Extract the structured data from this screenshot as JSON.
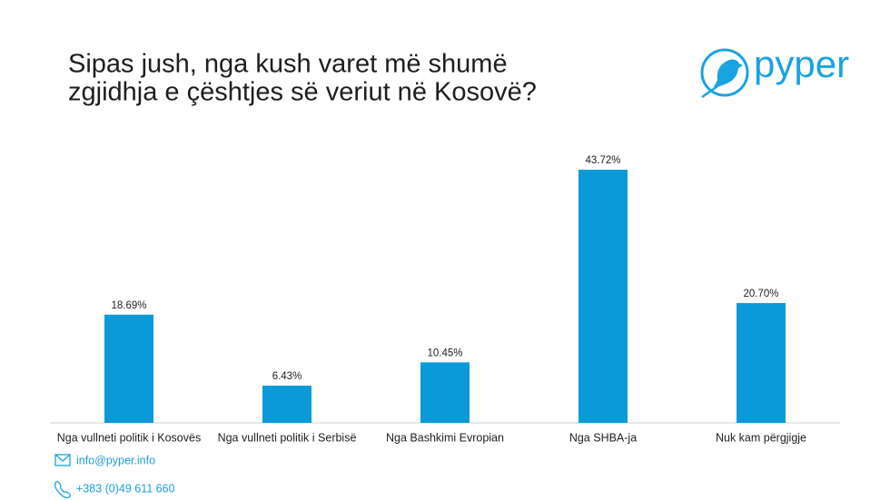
{
  "chart_data": {
    "type": "bar",
    "title": [
      "Sipas jush, nga kush varet më shumë",
      "zgjidhja e çështjes së veriut në Kosovë?"
    ],
    "categories": [
      "Nga vullneti politik i Kosovës",
      "Nga vullneti politik i Serbisë",
      "Nga Bashkimi Evropian",
      "Nga SHBA-ja",
      "Nuk kam përgjigje"
    ],
    "values": [
      18.69,
      6.43,
      10.45,
      43.72,
      20.7
    ],
    "value_labels": [
      "18.69%",
      "6.43%",
      "10.45%",
      "43.72%",
      "20.70%"
    ],
    "color": "#0b9ad9"
  },
  "logo": "pyper",
  "contact": {
    "email": "info@pyper.info",
    "phone": "+383 (0)49 611 660"
  }
}
